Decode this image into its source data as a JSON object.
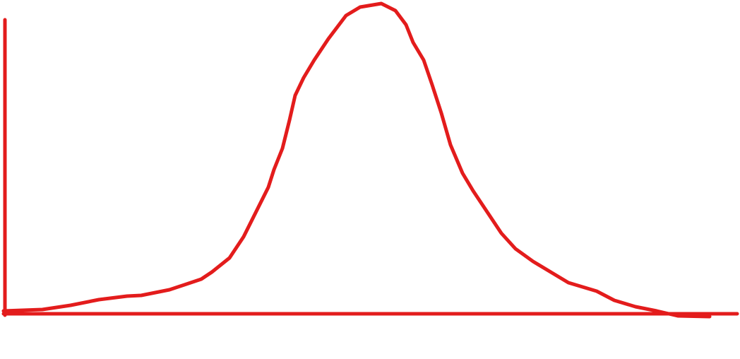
{
  "diagram": {
    "stroke_color": "#e31c1c",
    "background_color": "#ffffff"
  }
}
